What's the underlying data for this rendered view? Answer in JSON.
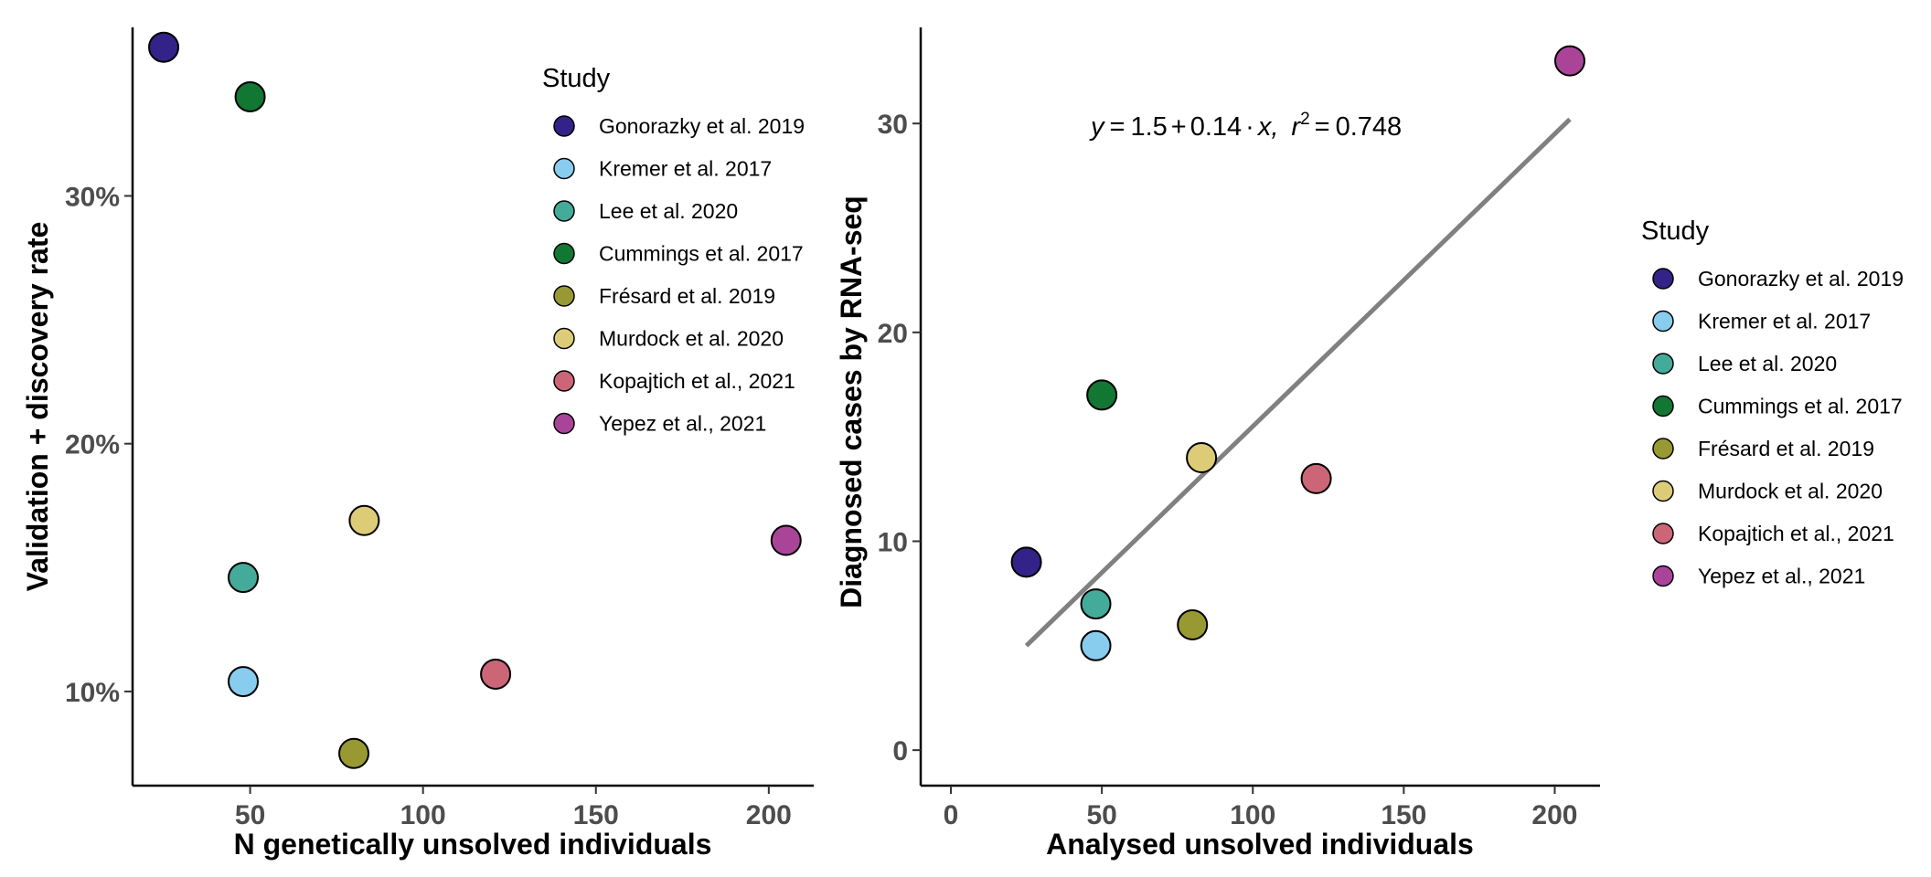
{
  "chart_data": [
    {
      "type": "scatter",
      "xlabel": "N genetically unsolved individuals",
      "ylabel": "Validation + discovery rate",
      "xlim": [
        16,
        213
      ],
      "ylim": [
        6.2,
        36.8
      ],
      "xticks": [
        50,
        100,
        150,
        200
      ],
      "xtick_labels": [
        "50",
        "100",
        "150",
        "200"
      ],
      "yticks": [
        10,
        20,
        30
      ],
      "ytick_labels": [
        "10%",
        "20%",
        "30%"
      ],
      "legend_title": "Study",
      "legend_position": "top-right inside",
      "series": [
        {
          "name": "Gonorazky et al. 2019",
          "color": "#332288",
          "x": 25,
          "y": 36.0
        },
        {
          "name": "Kremer et al. 2017",
          "color": "#88CCEE",
          "x": 48,
          "y": 10.4
        },
        {
          "name": "Lee et al. 2020",
          "color": "#44AA99",
          "x": 48,
          "y": 14.6
        },
        {
          "name": "Cummings et al. 2017",
          "color": "#117733",
          "x": 50,
          "y": 34.0
        },
        {
          "name": "Frésard et al. 2019",
          "color": "#999933",
          "x": 80,
          "y": 7.5
        },
        {
          "name": "Murdock et al. 2020",
          "color": "#DDCC77",
          "x": 83,
          "y": 16.9
        },
        {
          "name": "Kopajtich et al., 2021",
          "color": "#CC6677",
          "x": 121,
          "y": 10.7
        },
        {
          "name": "Yepez et al., 2021",
          "color": "#AA4499",
          "x": 205,
          "y": 16.1
        }
      ]
    },
    {
      "type": "scatter",
      "xlabel": "Analysed unsolved individuals",
      "ylabel": "Diagnosed cases by RNA-seq",
      "xlim": [
        -10,
        215
      ],
      "ylim": [
        -1.7,
        34.6
      ],
      "xticks": [
        0,
        50,
        100,
        150,
        200
      ],
      "xtick_labels": [
        "0",
        "50",
        "100",
        "150",
        "200"
      ],
      "yticks": [
        0,
        10,
        20,
        30
      ],
      "ytick_labels": [
        "0",
        "10",
        "20",
        "30"
      ],
      "legend_title": "Study",
      "legend_position": "right outside",
      "annotation": {
        "y_label": "y",
        "equals": "=",
        "intercept": "1.5",
        "plus": "+",
        "slope": "0.14",
        "dot": "·",
        "x_label": "x,",
        "r_label": "r",
        "r_exp": "2",
        "r_equals": "=",
        "r2": "0.748"
      },
      "regression": {
        "intercept": 1.5,
        "slope": 0.14,
        "x_range": [
          25,
          205
        ],
        "color": "#808080"
      },
      "series": [
        {
          "name": "Gonorazky et al. 2019",
          "color": "#332288",
          "x": 25,
          "y": 9
        },
        {
          "name": "Kremer et al. 2017",
          "color": "#88CCEE",
          "x": 48,
          "y": 5
        },
        {
          "name": "Lee et al. 2020",
          "color": "#44AA99",
          "x": 48,
          "y": 7
        },
        {
          "name": "Cummings et al. 2017",
          "color": "#117733",
          "x": 50,
          "y": 17
        },
        {
          "name": "Frésard et al. 2019",
          "color": "#999933",
          "x": 80,
          "y": 6
        },
        {
          "name": "Murdock et al. 2020",
          "color": "#DDCC77",
          "x": 83,
          "y": 14
        },
        {
          "name": "Kopajtich et al., 2021",
          "color": "#CC6677",
          "x": 121,
          "y": 13
        },
        {
          "name": "Yepez et al., 2021",
          "color": "#AA4499",
          "x": 205,
          "y": 33
        }
      ]
    }
  ]
}
